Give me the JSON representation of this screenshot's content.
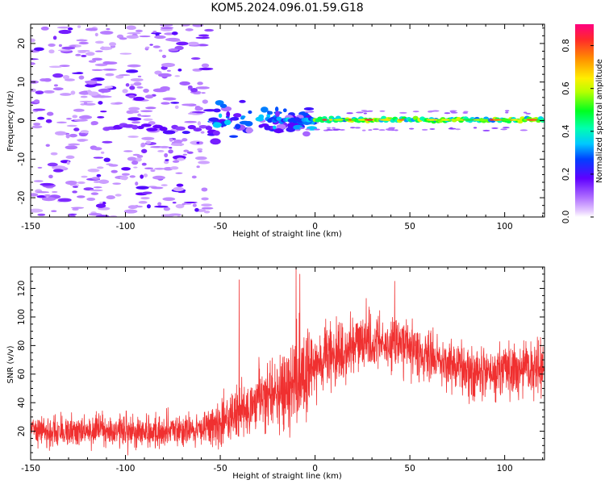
{
  "chart_data": [
    {
      "type": "heatmap",
      "title": "KOM5.2024.096.01.59.G18",
      "xlabel": "Height of straight line (km)",
      "ylabel": "Frequency (Hz)",
      "xlim": [
        -150,
        121
      ],
      "ylim": [
        -25,
        25
      ],
      "xticks": [
        "-150",
        "-100",
        "-50",
        "0",
        "50",
        "100"
      ],
      "yticks": [
        "-20",
        "-10",
        "0",
        "10",
        "20"
      ],
      "colorbar": {
        "label": "Normalized spectral amplitude",
        "range": [
          0,
          0.9
        ],
        "ticks": [
          "0.0",
          "0.2",
          "0.4",
          "0.6",
          "0.8"
        ],
        "colormap": "gist_rainbow_r"
      },
      "features": {
        "noise_region_x": [
          -150,
          -55
        ],
        "signal_start_x": -55,
        "signal_frequency_hz": 0,
        "strong_signal_from_x": 0
      }
    },
    {
      "type": "line",
      "xlabel": "Height of straight line (km)",
      "ylabel": "SNR (v/v)",
      "xlim": [
        -150,
        121
      ],
      "ylim": [
        0,
        135
      ],
      "xticks": [
        "-150",
        "-100",
        "-50",
        "0",
        "50",
        "100"
      ],
      "yticks": [
        "20",
        "40",
        "60",
        "80",
        "100",
        "120"
      ],
      "color": "#f03030",
      "trend": {
        "x": [
          -150,
          -110,
          -80,
          -60,
          -50,
          -40,
          -30,
          -20,
          -10,
          0,
          10,
          20,
          30,
          40,
          50,
          60,
          70,
          80,
          90,
          100,
          110,
          121
        ],
        "y": [
          20,
          20,
          20,
          22,
          26,
          33,
          40,
          48,
          56,
          66,
          74,
          80,
          83,
          82,
          78,
          72,
          65,
          62,
          62,
          62,
          63,
          63
        ]
      },
      "spread": {
        "x": [
          -150,
          -60,
          -50,
          -30,
          -10,
          0,
          30,
          60,
          100,
          121
        ],
        "y": [
          9,
          9,
          13,
          18,
          26,
          20,
          16,
          15,
          15,
          15
        ]
      },
      "spikes": [
        {
          "x": -40,
          "y": 126
        },
        {
          "x": -10,
          "y": 135
        },
        {
          "x": -8,
          "y": 130
        },
        {
          "x": 27,
          "y": 113
        },
        {
          "x": 42,
          "y": 125
        }
      ]
    }
  ]
}
